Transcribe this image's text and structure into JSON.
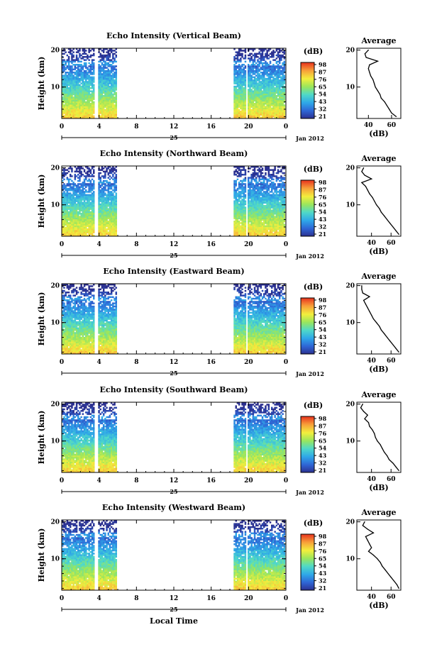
{
  "figure": {
    "xlabel": "Local Time",
    "date_label": "Jan 2012",
    "colorbar_unit": "(dB)",
    "avg_title": "Average",
    "avg_xlabel": "(dB)"
  },
  "chart_data": [
    {
      "type": "heatmap",
      "title": "Echo Intensity (Vertical Beam)",
      "ylabel": "Height (km)",
      "xlabel": "Local Time",
      "x_ticks": [
        "0",
        "4",
        "8",
        "12",
        "16",
        "20",
        "0"
      ],
      "day_label": "25",
      "y_ticks": [
        "10",
        "20"
      ],
      "ylim_km": [
        1.5,
        20.5
      ],
      "data_time_ranges_h": [
        [
          0,
          3.4
        ],
        [
          3.9,
          5.8
        ],
        [
          18.4,
          19.6
        ],
        [
          19.9,
          23.8
        ]
      ],
      "colorbar": {
        "unit": "(dB)",
        "ticks": [
          "21",
          "32",
          "43",
          "54",
          "65",
          "76",
          "87",
          "98"
        ],
        "colors": [
          "#2b2f8e",
          "#2f66d6",
          "#2fa8e8",
          "#4fd9c9",
          "#9ae65c",
          "#f2ee3d",
          "#f8a23a",
          "#e8361f"
        ]
      },
      "average": {
        "title": "Average",
        "xlabel": "(dB)",
        "x_ticks": [
          "40",
          "60"
        ],
        "xlim": [
          30,
          68
        ],
        "y_ticks": [
          "10",
          "20"
        ],
        "height_km": [
          2,
          3,
          4,
          5,
          6,
          7,
          8,
          9,
          10,
          11,
          12,
          13,
          14,
          15,
          16,
          17,
          18,
          19,
          20
        ],
        "db": [
          64,
          60,
          58,
          56,
          54,
          51,
          50,
          48,
          46,
          45,
          44,
          42,
          41,
          40,
          41,
          48,
          38,
          37,
          40
        ]
      }
    },
    {
      "type": "heatmap",
      "title": "Echo Intensity (Northward Beam)",
      "ylabel": "Height (km)",
      "xlabel": "Local Time",
      "x_ticks": [
        "0",
        "4",
        "8",
        "12",
        "16",
        "20",
        "0"
      ],
      "day_label": "25",
      "y_ticks": [
        "10",
        "20"
      ],
      "ylim_km": [
        1.5,
        20.5
      ],
      "data_time_ranges_h": [
        [
          0,
          3.4
        ],
        [
          3.9,
          5.8
        ],
        [
          18.4,
          19.6
        ],
        [
          19.9,
          23.8
        ]
      ],
      "colorbar": {
        "unit": "(dB)",
        "ticks": [
          "21",
          "32",
          "43",
          "54",
          "65",
          "76",
          "87",
          "98"
        ],
        "colors": [
          "#2b2f8e",
          "#2f66d6",
          "#2fa8e8",
          "#4fd9c9",
          "#9ae65c",
          "#f2ee3d",
          "#f8a23a",
          "#e8361f"
        ]
      },
      "average": {
        "title": "Average",
        "xlabel": "(dB)",
        "x_ticks": [
          "40",
          "60"
        ],
        "xlim": [
          25,
          70
        ],
        "y_ticks": [
          "10",
          "20"
        ],
        "height_km": [
          2,
          3,
          4,
          5,
          6,
          7,
          8,
          9,
          10,
          11,
          12,
          13,
          14,
          15,
          16,
          17,
          18,
          19,
          20
        ],
        "db": [
          68,
          65,
          62,
          59,
          56,
          53,
          50,
          48,
          45,
          43,
          41,
          38,
          36,
          34,
          30,
          40,
          33,
          30,
          32
        ]
      }
    },
    {
      "type": "heatmap",
      "title": "Echo Intensity (Eastward Beam)",
      "ylabel": "Height (km)",
      "xlabel": "Local Time",
      "x_ticks": [
        "0",
        "4",
        "8",
        "12",
        "16",
        "20",
        "0"
      ],
      "day_label": "25",
      "y_ticks": [
        "10",
        "20"
      ],
      "ylim_km": [
        1.5,
        20.5
      ],
      "data_time_ranges_h": [
        [
          0,
          3.4
        ],
        [
          3.9,
          5.8
        ],
        [
          18.4,
          19.6
        ],
        [
          19.9,
          23.8
        ]
      ],
      "colorbar": {
        "unit": "(dB)",
        "ticks": [
          "21",
          "32",
          "43",
          "54",
          "65",
          "76",
          "87",
          "98"
        ],
        "colors": [
          "#2b2f8e",
          "#2f66d6",
          "#2fa8e8",
          "#4fd9c9",
          "#9ae65c",
          "#f2ee3d",
          "#f8a23a",
          "#e8361f"
        ]
      },
      "average": {
        "title": "Average",
        "xlabel": "(dB)",
        "x_ticks": [
          "40",
          "60"
        ],
        "xlim": [
          25,
          70
        ],
        "y_ticks": [
          "10",
          "20"
        ],
        "height_km": [
          2,
          3,
          4,
          5,
          6,
          7,
          8,
          9,
          10,
          11,
          12,
          13,
          14,
          15,
          16,
          17,
          18,
          19,
          20
        ],
        "db": [
          68,
          65,
          62,
          59,
          56,
          53,
          50,
          48,
          45,
          42,
          40,
          38,
          36,
          34,
          32,
          38,
          31,
          30,
          30
        ]
      }
    },
    {
      "type": "heatmap",
      "title": "Echo Intensity (Southward Beam)",
      "ylabel": "Height (km)",
      "xlabel": "Local Time",
      "x_ticks": [
        "0",
        "4",
        "8",
        "12",
        "16",
        "20",
        "0"
      ],
      "day_label": "25",
      "y_ticks": [
        "10",
        "20"
      ],
      "ylim_km": [
        1.5,
        20.5
      ],
      "data_time_ranges_h": [
        [
          0,
          3.4
        ],
        [
          3.9,
          5.8
        ],
        [
          18.4,
          19.6
        ],
        [
          19.9,
          23.8
        ]
      ],
      "colorbar": {
        "unit": "(dB)",
        "ticks": [
          "21",
          "32",
          "43",
          "54",
          "65",
          "76",
          "87",
          "98"
        ],
        "colors": [
          "#2b2f8e",
          "#2f66d6",
          "#2fa8e8",
          "#4fd9c9",
          "#9ae65c",
          "#f2ee3d",
          "#f8a23a",
          "#e8361f"
        ]
      },
      "average": {
        "title": "Average",
        "xlabel": "(dB)",
        "x_ticks": [
          "40",
          "60"
        ],
        "xlim": [
          25,
          70
        ],
        "y_ticks": [
          "10",
          "20"
        ],
        "height_km": [
          2,
          3,
          4,
          5,
          6,
          7,
          8,
          9,
          10,
          11,
          12,
          13,
          14,
          15,
          16,
          17,
          18,
          19,
          20
        ],
        "db": [
          68,
          65,
          62,
          58,
          56,
          53,
          51,
          49,
          46,
          44,
          43,
          41,
          38,
          37,
          33,
          36,
          32,
          29,
          31
        ]
      }
    },
    {
      "type": "heatmap",
      "title": "Echo Intensity (Westward Beam)",
      "ylabel": "Height (km)",
      "xlabel": "Local Time",
      "x_ticks": [
        "0",
        "4",
        "8",
        "12",
        "16",
        "20",
        "0"
      ],
      "day_label": "25",
      "y_ticks": [
        "10",
        "20"
      ],
      "ylim_km": [
        1.5,
        20.5
      ],
      "data_time_ranges_h": [
        [
          0,
          3.4
        ],
        [
          3.9,
          5.8
        ],
        [
          18.4,
          19.6
        ],
        [
          19.9,
          23.8
        ]
      ],
      "colorbar": {
        "unit": "(dB)",
        "ticks": [
          "21",
          "32",
          "43",
          "54",
          "65",
          "76",
          "87",
          "98"
        ],
        "colors": [
          "#2b2f8e",
          "#2f66d6",
          "#2fa8e8",
          "#4fd9c9",
          "#9ae65c",
          "#f2ee3d",
          "#f8a23a",
          "#e8361f"
        ]
      },
      "average": {
        "title": "Average",
        "xlabel": "(dB)",
        "x_ticks": [
          "40",
          "60"
        ],
        "xlim": [
          25,
          70
        ],
        "y_ticks": [
          "10",
          "20"
        ],
        "height_km": [
          2,
          3,
          4,
          5,
          6,
          7,
          8,
          9,
          10,
          11,
          12,
          13,
          14,
          15,
          16,
          17,
          18,
          19,
          20
        ],
        "db": [
          68,
          66,
          63,
          60,
          57,
          54,
          51,
          49,
          46,
          42,
          37,
          40,
          38,
          36,
          34,
          42,
          36,
          31,
          33
        ]
      }
    }
  ]
}
